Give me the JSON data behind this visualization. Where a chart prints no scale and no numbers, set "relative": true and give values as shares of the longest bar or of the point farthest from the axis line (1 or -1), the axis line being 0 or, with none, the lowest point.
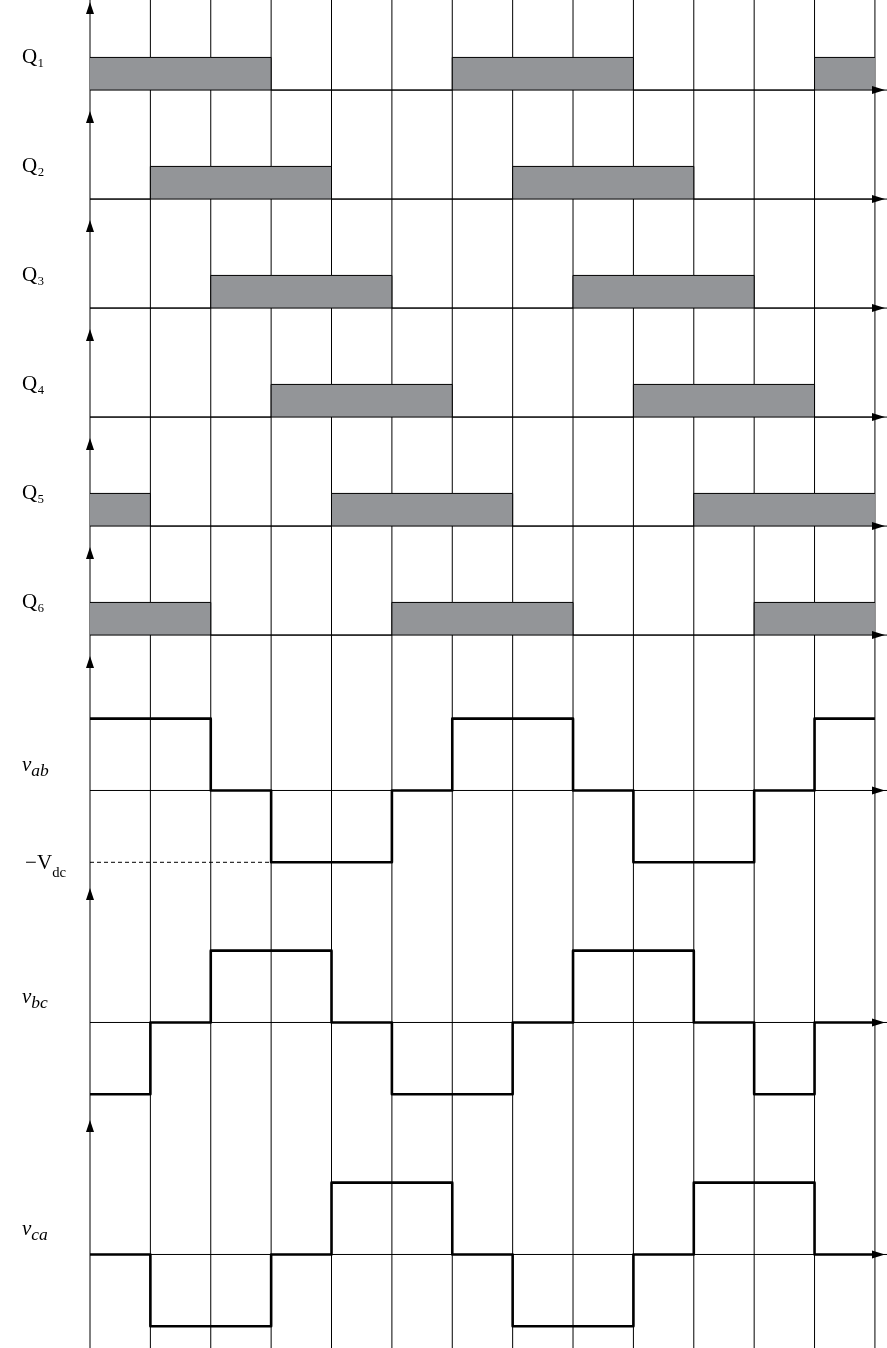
{
  "chart_data": [
    {
      "type": "area",
      "ylabel": "Q₁",
      "relative": true,
      "grid": "x",
      "color": "#939598",
      "categories": [
        null,
        null,
        null,
        null,
        null,
        null,
        null,
        null,
        null,
        null,
        null,
        null,
        null,
        null
      ],
      "values": [
        1,
        1,
        1,
        0,
        0,
        0,
        1,
        1,
        1,
        0,
        0,
        0,
        1,
        1
      ]
    },
    {
      "type": "area",
      "ylabel": "Q₂",
      "relative": true,
      "grid": "x",
      "color": "#939598",
      "categories": [
        null,
        null,
        null,
        null,
        null,
        null,
        null,
        null,
        null,
        null,
        null,
        null,
        null,
        null
      ],
      "values": [
        0,
        1,
        1,
        1,
        0,
        0,
        0,
        1,
        1,
        1,
        0,
        0,
        0,
        0
      ]
    },
    {
      "type": "area",
      "ylabel": "Q₃",
      "relative": true,
      "grid": "x",
      "color": "#939598",
      "categories": [
        null,
        null,
        null,
        null,
        null,
        null,
        null,
        null,
        null,
        null,
        null,
        null,
        null,
        null
      ],
      "values": [
        0,
        0,
        1,
        1,
        1,
        0,
        0,
        0,
        1,
        1,
        1,
        0,
        0,
        0
      ]
    },
    {
      "type": "area",
      "ylabel": "Q₄",
      "relative": true,
      "grid": "x",
      "color": "#939598",
      "categories": [
        null,
        null,
        null,
        null,
        null,
        null,
        null,
        null,
        null,
        null,
        null,
        null,
        null,
        null
      ],
      "values": [
        0,
        0,
        0,
        1,
        1,
        1,
        0,
        0,
        0,
        1,
        1,
        1,
        0,
        0
      ]
    },
    {
      "type": "area",
      "ylabel": "Q₅",
      "relative": true,
      "grid": "x",
      "color": "#939598",
      "categories": [
        null,
        null,
        null,
        null,
        null,
        null,
        null,
        null,
        null,
        null,
        null,
        null,
        null,
        null
      ],
      "values": [
        1,
        0,
        0,
        0,
        1,
        1,
        1,
        0,
        0,
        0,
        1,
        1,
        1,
        1
      ]
    },
    {
      "type": "area",
      "ylabel": "Q₆",
      "relative": true,
      "grid": "x",
      "color": "#939598",
      "categories": [
        null,
        null,
        null,
        null,
        null,
        null,
        null,
        null,
        null,
        null,
        null,
        null,
        null,
        null
      ],
      "values": [
        1,
        1,
        0,
        0,
        0,
        1,
        1,
        1,
        0,
        0,
        0,
        1,
        1,
        1
      ]
    },
    {
      "type": "step",
      "ylabel": "v$_{ab}$",
      "relative": true,
      "grid": "x",
      "color": "#000000",
      "categories": [
        null,
        null,
        null,
        null,
        null,
        null,
        null,
        null,
        null,
        null,
        null,
        null,
        null,
        null
      ],
      "values": [
        1,
        1,
        0,
        -1,
        -1,
        0,
        1,
        1,
        0,
        -1,
        -1,
        0,
        1,
        1
      ],
      "annotations": [
        "−V$_{dc}$"
      ]
    },
    {
      "type": "step",
      "ylabel": "v$_{bc}$",
      "relative": true,
      "grid": "x",
      "color": "#000000",
      "categories": [
        null,
        null,
        null,
        null,
        null,
        null,
        null,
        null,
        null,
        null,
        null,
        null,
        null,
        null
      ],
      "values": [
        -1,
        0,
        1,
        1,
        0,
        -1,
        -1,
        0,
        1,
        1,
        0,
        -1,
        0,
        0
      ]
    },
    {
      "type": "step",
      "ylabel": "v$_{ca}$",
      "relative": true,
      "grid": "x",
      "color": "#000000",
      "categories": [
        null,
        null,
        null,
        null,
        null,
        null,
        null,
        null,
        null,
        null,
        null,
        null,
        null,
        null
      ],
      "values": [
        0,
        -1,
        -1,
        0,
        1,
        1,
        0,
        -1,
        -1,
        0,
        1,
        1,
        0,
        0
      ]
    }
  ]
}
